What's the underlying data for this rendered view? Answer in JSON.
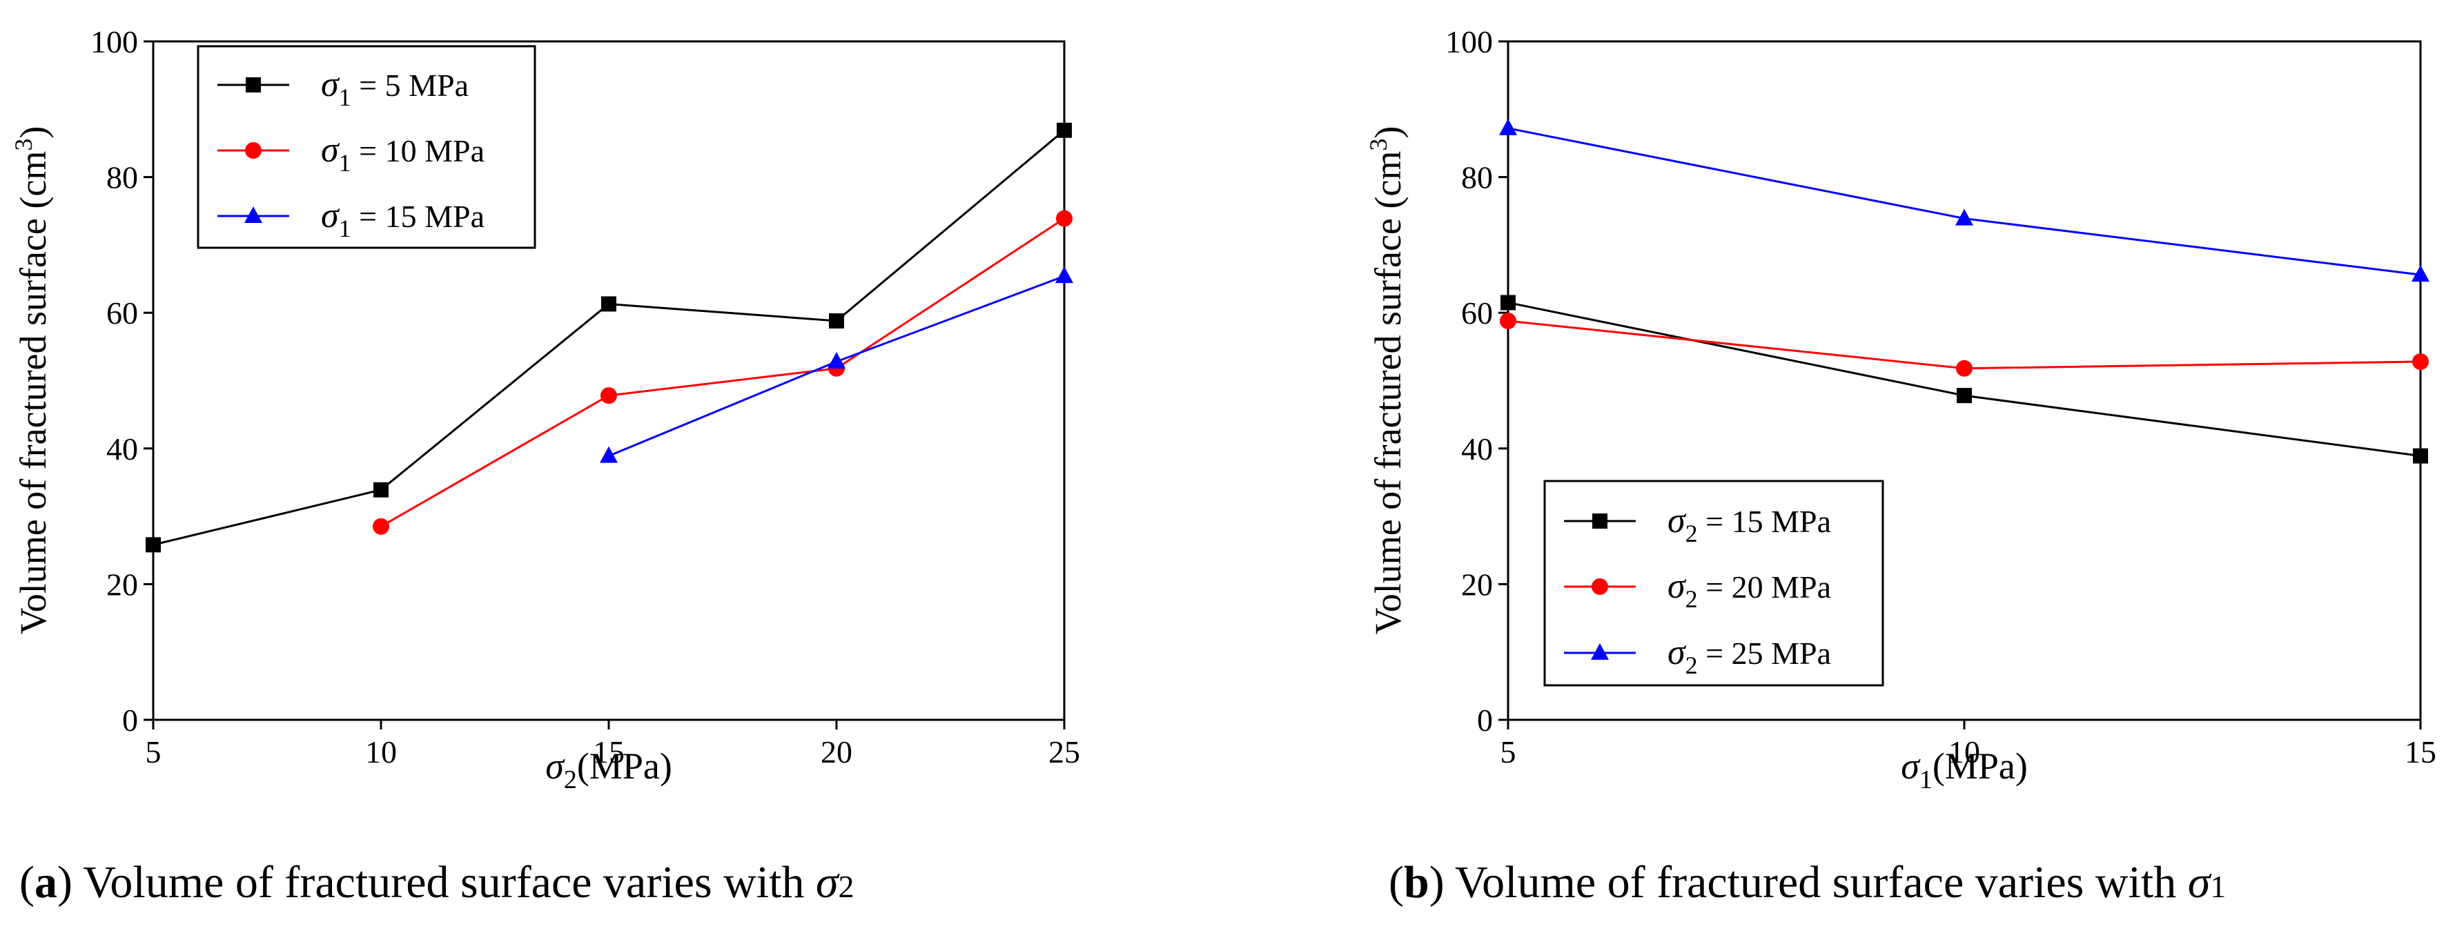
{
  "chart_data": [
    {
      "type": "line",
      "caption": {
        "label": "a",
        "text": ") Volume of fractured surface varies with ",
        "symbol": "σ",
        "subscript": "2"
      },
      "xlabel": {
        "symbol": "σ",
        "subscript": "2",
        "text": "(MPa)"
      },
      "ylabel": {
        "text": "Volume of fractured surface (cm",
        "sup": "3",
        "close": ")"
      },
      "xlim": [
        5,
        25
      ],
      "ylim": [
        0,
        100
      ],
      "xticks": [
        5,
        10,
        15,
        20,
        25
      ],
      "yticks": [
        0,
        20,
        40,
        60,
        80,
        100
      ],
      "grid": false,
      "legend_position": "top-left",
      "series": [
        {
          "name": {
            "symbol": "σ",
            "subscript": "1",
            "text": " = 5 MPa"
          },
          "color": "#000000",
          "marker": "square",
          "points": [
            [
              5,
              25.8
            ],
            [
              10,
              33.9
            ],
            [
              15,
              61.3
            ],
            [
              20,
              58.8
            ],
            [
              25,
              86.9
            ]
          ]
        },
        {
          "name": {
            "symbol": "σ",
            "subscript": "1",
            "text": " = 10 MPa"
          },
          "color": "#ff0000",
          "marker": "circle",
          "points": [
            [
              10,
              28.5
            ],
            [
              15,
              47.8
            ],
            [
              20,
              51.8
            ],
            [
              25,
              73.9
            ]
          ]
        },
        {
          "name": {
            "symbol": "σ",
            "subscript": "1",
            "text": " = 15 MPa"
          },
          "color": "#0000ff",
          "marker": "triangle",
          "points": [
            [
              15,
              38.9
            ],
            [
              20,
              52.8
            ],
            [
              25,
              65.4
            ]
          ]
        }
      ]
    },
    {
      "type": "line",
      "caption": {
        "label": "b",
        "text": ") Volume of fractured surface varies with ",
        "symbol": "σ",
        "subscript": "1"
      },
      "xlabel": {
        "symbol": "σ",
        "subscript": "1",
        "text": "(MPa)"
      },
      "ylabel": {
        "text": "Volume of fractured surface (cm",
        "sup": "3",
        "close": ")"
      },
      "xlim": [
        5,
        15
      ],
      "ylim": [
        0,
        100
      ],
      "xticks": [
        5,
        10,
        15
      ],
      "yticks": [
        0,
        20,
        40,
        60,
        80,
        100
      ],
      "grid": false,
      "legend_position": "bottom-left",
      "series": [
        {
          "name": {
            "symbol": "σ",
            "subscript": "2",
            "text": " = 15 MPa"
          },
          "color": "#000000",
          "marker": "square",
          "points": [
            [
              5,
              61.5
            ],
            [
              10,
              47.8
            ],
            [
              15,
              38.9
            ]
          ]
        },
        {
          "name": {
            "symbol": "σ",
            "subscript": "2",
            "text": " = 20 MPa"
          },
          "color": "#ff0000",
          "marker": "circle",
          "points": [
            [
              5,
              58.8
            ],
            [
              10,
              51.8
            ],
            [
              15,
              52.8
            ]
          ]
        },
        {
          "name": {
            "symbol": "σ",
            "subscript": "2",
            "text": " = 25 MPa"
          },
          "color": "#0000ff",
          "marker": "triangle",
          "points": [
            [
              5,
              87.2
            ],
            [
              10,
              73.9
            ],
            [
              15,
              65.6
            ]
          ]
        }
      ]
    }
  ]
}
